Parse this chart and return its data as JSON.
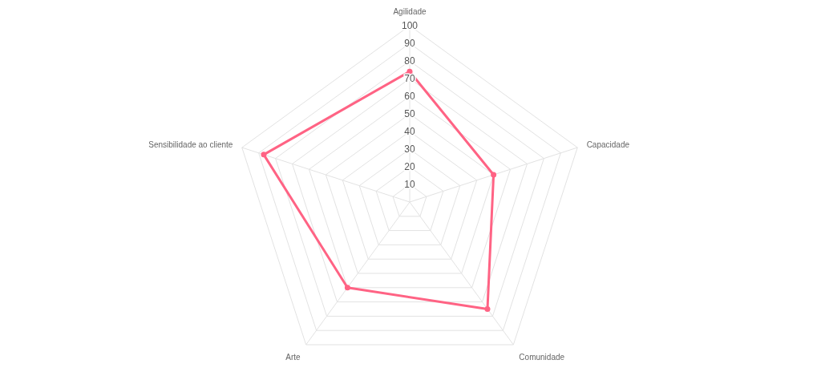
{
  "chart_data": {
    "type": "radar",
    "categories": [
      "Agilidade",
      "Capacidade",
      "Comunidade",
      "Arte",
      "Sensibilidade ao cliente"
    ],
    "series": [
      {
        "color": "#ff6384",
        "values": [
          74,
          50,
          75,
          60,
          87
        ]
      }
    ],
    "ylim": [
      0,
      100
    ],
    "yticks": [
      10,
      20,
      30,
      40,
      50,
      60,
      70,
      80,
      90,
      100
    ],
    "grid": true,
    "marker": "circle"
  }
}
